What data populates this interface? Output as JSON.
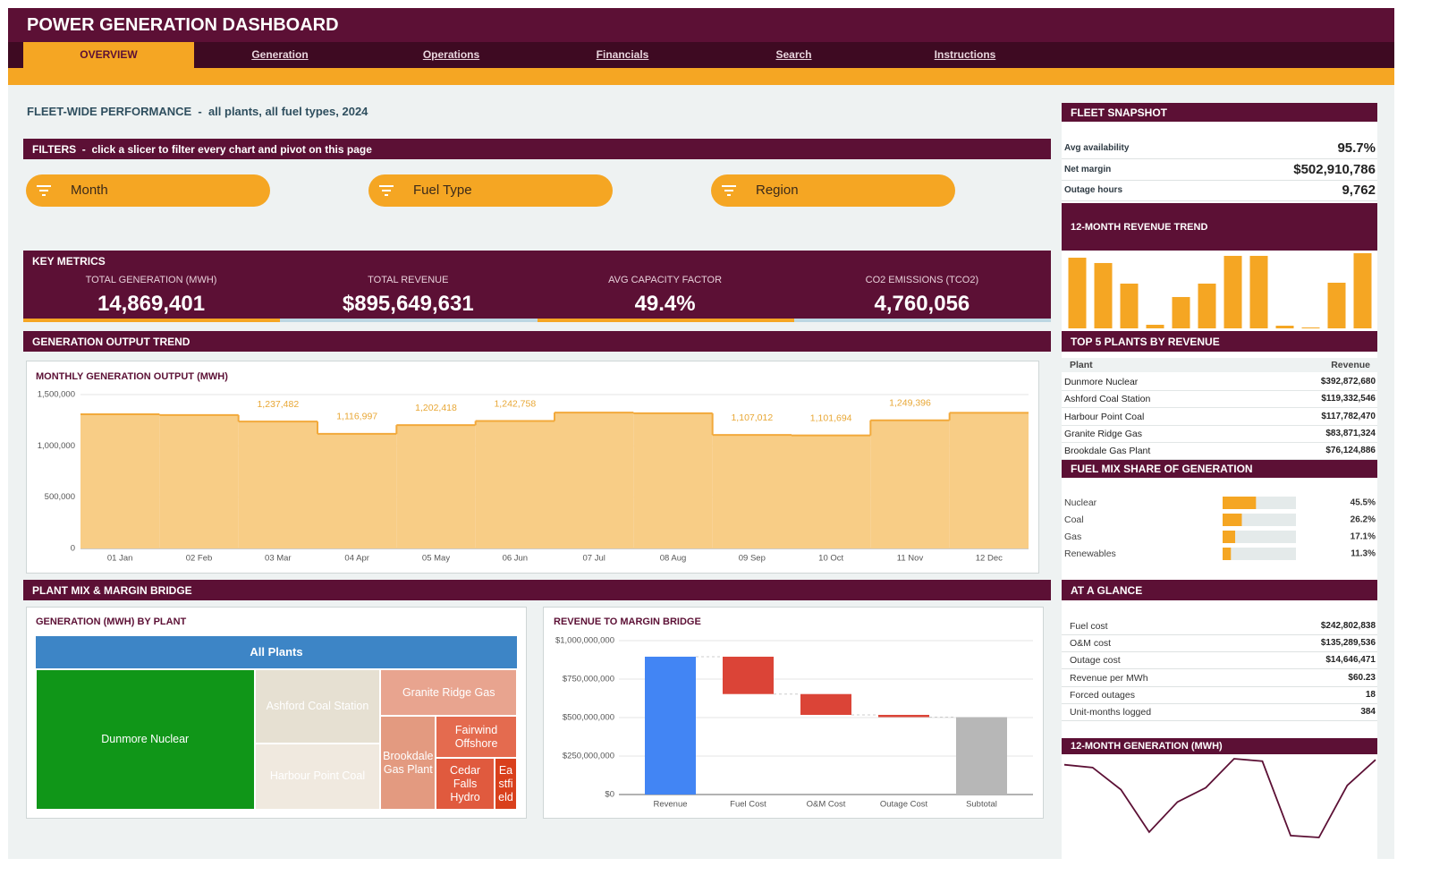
{
  "header": {
    "title": "POWER GENERATION DASHBOARD",
    "tabs": [
      "OVERVIEW",
      "Generation",
      "Operations",
      "Financials",
      "Search",
      "Instructions"
    ],
    "active_tab": 0
  },
  "subtitle": "FLEET-WIDE PERFORMANCE  -  all plants, all fuel types, 2024",
  "filters": {
    "title": "FILTERS  -  click a slicer to filter every chart and pivot on this page",
    "slicers": [
      "Month",
      "Fuel Type",
      "Region"
    ]
  },
  "key_metrics": {
    "title": "KEY METRICS",
    "items": [
      {
        "label": "TOTAL GENERATION (MWH)",
        "value": "14,869,401"
      },
      {
        "label": "TOTAL REVENUE",
        "value": "$895,649,631"
      },
      {
        "label": "AVG CAPACITY FACTOR",
        "value": "49.4%"
      },
      {
        "label": "CO2 EMISSIONS (TCO2)",
        "value": "4,760,056"
      }
    ]
  },
  "sections": {
    "generation": "GENERATION OUTPUT TREND",
    "plant_mix": "PLANT MIX & MARGIN BRIDGE"
  },
  "fleet_snapshot": {
    "title": "FLEET SNAPSHOT",
    "rows": [
      [
        "Avg availability",
        "95.7%"
      ],
      [
        "Net margin",
        "$502,910,786"
      ],
      [
        "Outage hours",
        "9,762"
      ]
    ]
  },
  "top_plants": {
    "title": "TOP 5 PLANTS BY REVENUE",
    "columns": [
      "Plant",
      "Revenue"
    ],
    "rows": [
      [
        "Dunmore Nuclear",
        "$392,872,680"
      ],
      [
        "Ashford Coal Station",
        "$119,332,546"
      ],
      [
        "Harbour Point Coal",
        "$117,782,470"
      ],
      [
        "Granite Ridge Gas",
        "$83,871,324"
      ],
      [
        "Brookdale Gas Plant",
        "$76,124,886"
      ]
    ]
  },
  "at_a_glance": {
    "title": "AT A GLANCE",
    "rows": [
      [
        "Fuel cost",
        "$242,802,838"
      ],
      [
        "O&M cost",
        "$135,289,536"
      ],
      [
        "Outage cost",
        "$14,646,471"
      ],
      [
        "Revenue per MWh",
        "$60.23"
      ],
      [
        "Forced outages",
        "18"
      ],
      [
        "Unit-months logged",
        "384"
      ]
    ]
  },
  "chart_data": [
    {
      "type": "area",
      "title": "MONTHLY GENERATION OUTPUT (MWH)",
      "categories": [
        "01 Jan",
        "02 Feb",
        "03 Mar",
        "04 Apr",
        "05 May",
        "06 Jun",
        "07 Jul",
        "08 Aug",
        "09 Sep",
        "10 Oct",
        "11 Nov",
        "12 Dec"
      ],
      "values": [
        1308000,
        1300000,
        1237482,
        1116997,
        1202418,
        1242758,
        1325000,
        1318000,
        1107012,
        1101694,
        1249396,
        1322000
      ],
      "value_labels": [
        null,
        null,
        "1,237,482",
        "1,116,997",
        "1,202,418",
        "1,242,758",
        null,
        null,
        "1,107,012",
        "1,101,694",
        "1,249,396",
        null
      ],
      "color": "#f2a93b",
      "fill_color": "#f8cd86",
      "ylim": [
        0,
        1500000
      ],
      "yticks": [
        0,
        {
          "value": 500000,
          "label": "500,000"
        },
        {
          "value": 1000000,
          "label": "1,000,000"
        },
        {
          "value": 1500000,
          "label": "1,500,000"
        }
      ],
      "grid": true
    },
    {
      "type": "treemap",
      "title": "GENERATION (MWH) BY PLANT",
      "root": "All Plants",
      "root_color": "#3d85c6",
      "categories": [
        "Dunmore Nuclear",
        "Ashford Coal Station",
        "Harbour Point Coal",
        "Granite Ridge Gas",
        "Brookdale Gas Plant",
        "Fairwind Offshore",
        "Cedar Falls Hydro",
        "Eastfield"
      ],
      "values": [
        6765000,
        2050000,
        1850000,
        1400000,
        1140000,
        752000,
        673000,
        255000
      ],
      "colors": [
        "#109618",
        "#e6e0d2",
        "#f0e9df",
        "#e8a48f",
        "#e39a80",
        "#e46b4f",
        "#e05a3e",
        "#d9401c"
      ]
    },
    {
      "type": "waterfall",
      "title": "REVENUE TO MARGIN BRIDGE",
      "categories": [
        "Revenue",
        "Fuel Cost",
        "O&M Cost",
        "Outage Cost",
        "Subtotal"
      ],
      "values": [
        895649631,
        -242802838,
        -135289536,
        -14646471,
        502910786
      ],
      "is_total": [
        false,
        false,
        false,
        false,
        true
      ],
      "colors": [
        "#4285f4",
        "#db4437",
        "#db4437",
        "#db4437",
        "#b7b7b7"
      ],
      "ylim": [
        0,
        1000000000
      ],
      "yticks": [
        {
          "value": 0,
          "label": "$0"
        },
        {
          "value": 250000000,
          "label": "$250,000,000"
        },
        {
          "value": 500000000,
          "label": "$500,000,000"
        },
        {
          "value": 750000000,
          "label": "$750,000,000"
        },
        {
          "value": 1000000000,
          "label": "$1,000,000,000"
        }
      ],
      "grid": true
    },
    {
      "type": "bar",
      "title": "12-MONTH REVENUE TREND",
      "values": [
        119500000,
        110500000,
        75700000,
        6100000,
        53000000,
        75700000,
        122600000,
        122600000,
        4500000,
        1500000,
        77200000,
        127100000
      ],
      "color": "#f5a623"
    },
    {
      "type": "hbar",
      "title": "FUEL MIX SHARE OF GENERATION",
      "categories": [
        "Nuclear",
        "Coal",
        "Gas",
        "Renewables"
      ],
      "values": [
        45.5,
        26.2,
        17.1,
        11.3
      ],
      "value_labels": [
        "45.5%",
        "26.2%",
        "17.1%",
        "11.3%"
      ],
      "xlim": [
        0,
        100
      ],
      "color": "#f5a623",
      "track_color": "#e4eaea"
    },
    {
      "type": "line",
      "title": "12-MONTH GENERATION (MWH)",
      "values": [
        1308000,
        1300000,
        1237482,
        1116997,
        1202418,
        1242758,
        1325000,
        1318000,
        1107012,
        1101694,
        1249396,
        1322000
      ],
      "color": "#5c1035"
    }
  ]
}
